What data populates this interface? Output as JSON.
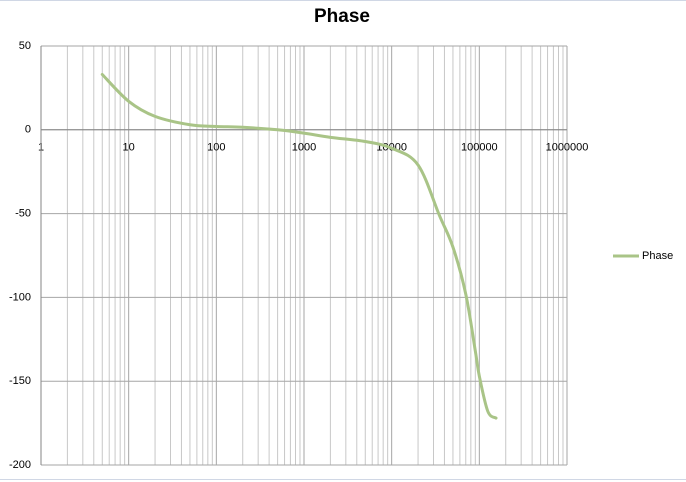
{
  "chart_data": {
    "type": "line",
    "title": "Phase",
    "x": [
      5,
      10,
      20,
      50,
      100,
      200,
      500,
      1000,
      2000,
      5000,
      10000,
      20000,
      35000,
      50000,
      70000,
      90000,
      100000,
      125000,
      155000
    ],
    "series": [
      {
        "name": "Phase",
        "color": "#a9c487",
        "values": [
          33,
          17,
          8,
          3,
          2,
          1.5,
          0,
          -2,
          -4.5,
          -7,
          -11,
          -21,
          -51,
          -70,
          -98,
          -132,
          -147,
          -168,
          -172
        ]
      }
    ],
    "xlim": [
      1,
      1000000
    ],
    "xticks": [
      1,
      10,
      100,
      1000,
      10000,
      100000,
      1000000
    ],
    "ylim": [
      -200,
      50
    ],
    "yticks": [
      50,
      0,
      -50,
      -100,
      -150,
      -200
    ],
    "xscale": "log",
    "grid": true,
    "minor_grid": true,
    "legend": "right"
  }
}
